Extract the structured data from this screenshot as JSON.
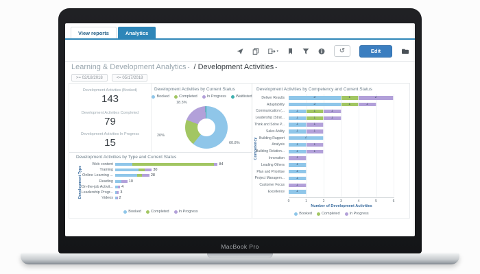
{
  "device": {
    "brand_label": "MacBook Pro"
  },
  "tabs": [
    {
      "label": "View reports",
      "active": false
    },
    {
      "label": "Analytics",
      "active": true
    }
  ],
  "toolbar": {
    "icons": [
      "send",
      "copy",
      "export",
      "bookmark",
      "filter",
      "help",
      "refresh",
      "folder"
    ],
    "edit_label": "Edit"
  },
  "breadcrumb": {
    "primary": "Learning & Development Analytics",
    "primary_caret": "-",
    "separator": "/",
    "secondary": "Development Activities",
    "secondary_caret": "-"
  },
  "filters": [
    ">= 02/18/2018",
    "<= 05/17/2018"
  ],
  "kpis": [
    {
      "label": "Development Activities (Booked)",
      "value": "143"
    },
    {
      "label": "Development Activities Completed",
      "value": "79"
    },
    {
      "label": "Development Activities In Progress",
      "value": "15"
    }
  ],
  "colors": {
    "series": {
      "Booked": "#8fc6e9",
      "Completed": "#a2c662",
      "In Progress": "#b2a0d9",
      "Waitlisted": "#3fafae"
    },
    "accent_tab": "#2e86b8",
    "edit_button": "#3b7ec0",
    "axis_label": "#33679b"
  },
  "chart_data": [
    {
      "type": "pie",
      "title": "Development Activities by Current Status",
      "legend": [
        "Booked",
        "Completed",
        "In Progress",
        "Waitlisted"
      ],
      "slices": [
        {
          "label": "Booked",
          "pct": 60.8,
          "display": "60.8%"
        },
        {
          "label": "Completed",
          "pct": 20,
          "display": "20%"
        },
        {
          "label": "In Progress",
          "pct": 18.3,
          "display": "18.3%"
        },
        {
          "label": "Waitlisted",
          "pct": 0.9,
          "display": ""
        }
      ]
    },
    {
      "type": "bar",
      "title": "Development Activities by Type and Current Status",
      "ylabel": "Development Type",
      "categories": [
        "Web content",
        "Training",
        "Online Learning ...",
        "Reading",
        "On-the-job Activit...",
        "Leadership Progr...",
        "Videos"
      ],
      "series": [
        {
          "name": "Booked",
          "values": [
            14,
            19,
            18,
            5,
            2,
            1,
            1
          ]
        },
        {
          "name": "Completed",
          "values": [
            67,
            5,
            4,
            0,
            0,
            0,
            0
          ]
        },
        {
          "name": "In Progress",
          "values": [
            3,
            6,
            6,
            5,
            2,
            2,
            1
          ]
        }
      ],
      "totals": [
        84,
        30,
        28,
        10,
        4,
        3,
        2
      ],
      "legend": [
        "Booked",
        "Completed",
        "In Progress"
      ]
    },
    {
      "type": "bar",
      "title": "Development Activities by Competency and Current Status",
      "xlabel": "Number of Development Activities",
      "ylabel": "Competency",
      "xlim": [
        0,
        6
      ],
      "xticks": [
        0,
        1,
        2,
        3,
        4,
        5,
        6
      ],
      "categories": [
        "Deliver Results",
        "Adaptability",
        "Communication (...",
        "Leadership (Strat...",
        "Think and Solve P...",
        "Sales Ability",
        "Building Rapport",
        "Analysis",
        "Building Relation...",
        "Innovation",
        "Leading Others",
        "Plan and Prioritise",
        "Project Managem...",
        "Customer Focus",
        "Excellence"
      ],
      "series": [
        {
          "name": "Booked",
          "values": [
            3,
            3,
            1,
            1,
            1,
            1,
            2,
            1,
            1,
            0,
            1,
            1,
            1,
            0,
            1
          ]
        },
        {
          "name": "Completed",
          "values": [
            1,
            1,
            1,
            1,
            0,
            0,
            0,
            0,
            0,
            0,
            0,
            0,
            0,
            0,
            0
          ]
        },
        {
          "name": "In Progress",
          "values": [
            2,
            1,
            1,
            1,
            1,
            1,
            0,
            1,
            1,
            1,
            0,
            0,
            0,
            1,
            0
          ]
        }
      ],
      "legend": [
        "Booked",
        "Completed",
        "In Progress"
      ]
    }
  ]
}
